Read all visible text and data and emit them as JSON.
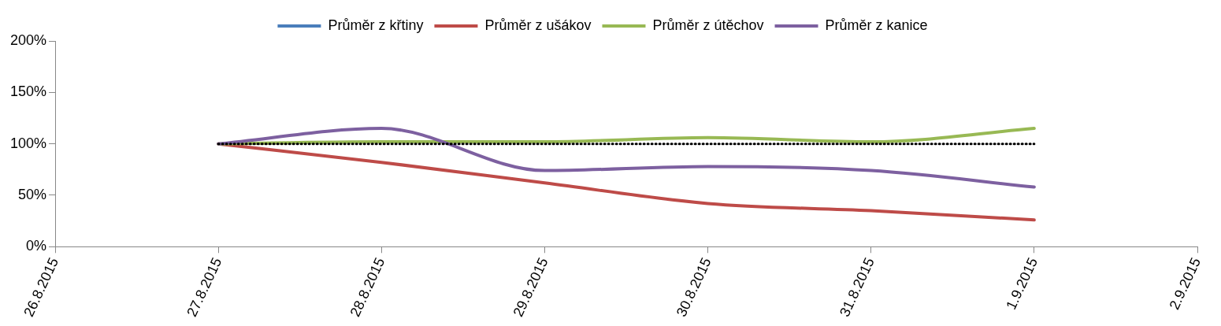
{
  "chart_data": {
    "type": "line",
    "x": [
      "2015-08-27",
      "2015-08-28",
      "2015-08-29",
      "2015-08-30",
      "2015-08-31",
      "2015-09-01"
    ],
    "series": [
      {
        "name": "Průměr z křtiny",
        "color": "#4a7ebb",
        "values": [
          null,
          null,
          null,
          null,
          null,
          null
        ]
      },
      {
        "name": "Průměr z ušákov",
        "color": "#be4b48",
        "values": [
          100,
          82,
          62,
          42,
          35,
          26
        ]
      },
      {
        "name": "Průměr z útěchov",
        "color": "#98b954",
        "values": [
          100,
          102,
          102,
          106,
          102,
          115
        ]
      },
      {
        "name": "Průměr z kanice",
        "color": "#7d60a0",
        "values": [
          100,
          115,
          74,
          78,
          74,
          58
        ]
      },
      {
        "color": "#000000",
        "line_style": "dotted",
        "values": [
          100,
          100,
          100,
          100,
          100,
          100
        ]
      }
    ],
    "xlim": [
      "2015-08-26",
      "2015-09-02"
    ],
    "xticks": [
      {
        "value": "2015-08-26",
        "label": "26.8.2015"
      },
      {
        "value": "2015-08-27",
        "label": "27.8.2015"
      },
      {
        "value": "2015-08-28",
        "label": "28.8.2015"
      },
      {
        "value": "2015-08-29",
        "label": "29.8.2015"
      },
      {
        "value": "2015-08-30",
        "label": "30.8.2015"
      },
      {
        "value": "2015-08-31",
        "label": "31.8.2015"
      },
      {
        "value": "2015-09-01",
        "label": "1.9.2015"
      },
      {
        "value": "2015-09-02",
        "label": "2.9.2015"
      }
    ],
    "ylim": [
      0,
      200
    ],
    "yticks": [
      {
        "value": 0,
        "label": "0%"
      },
      {
        "value": 50,
        "label": "50%"
      },
      {
        "value": 100,
        "label": "100%"
      },
      {
        "value": 150,
        "label": "150%"
      },
      {
        "value": 200,
        "label": "200%"
      }
    ],
    "grid": false,
    "legend": "top",
    "marker": "none",
    "line_style": "solid"
  }
}
